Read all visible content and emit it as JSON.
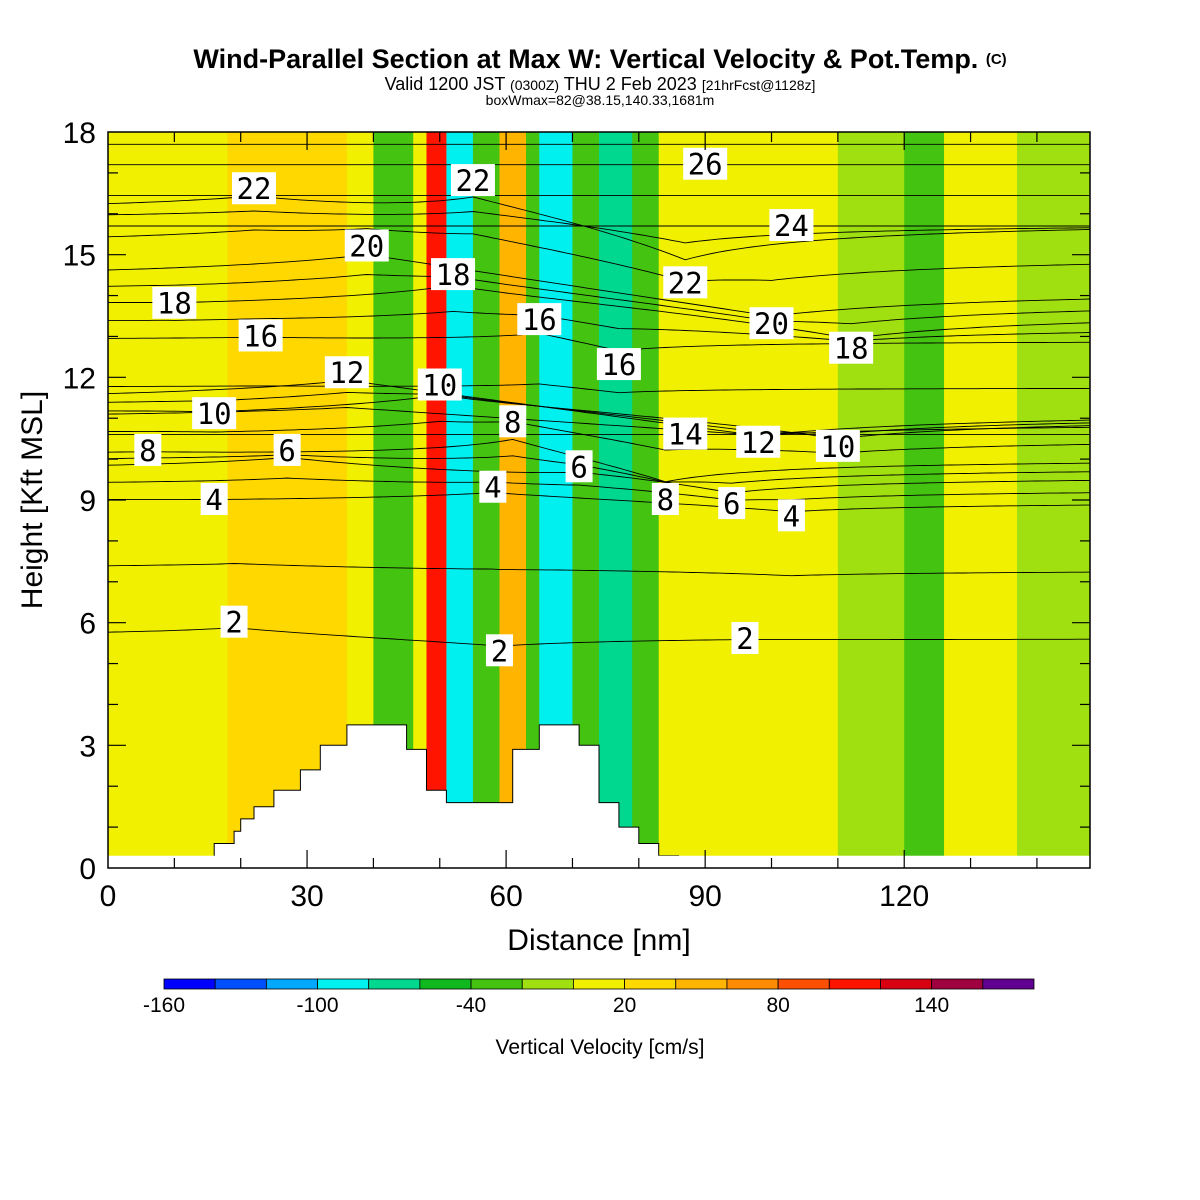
{
  "header": {
    "title": "Wind-Parallel Section at Max W: Vertical Velocity & Pot.Temp.",
    "copyright": "(C)",
    "valid_prefix": "Valid 1200 JST",
    "valid_utc": "(0300Z)",
    "valid_date": "THU 2 Feb 2023",
    "forecast": "[21hrFcst@1128z]",
    "box_info": "boxWmax=82@38.15,140.33,1681m"
  },
  "chart_data": {
    "type": "heatmap",
    "title": "Wind-Parallel Section at Max W: Vertical Velocity & Pot.Temp.",
    "xlabel": "Distance [nm]",
    "ylabel": "Height [Kft MSL]",
    "xlim": [
      0,
      148
    ],
    "ylim": [
      0,
      18
    ],
    "x_ticks": [
      0,
      30,
      60,
      90,
      120
    ],
    "y_ticks": [
      0,
      3,
      6,
      9,
      12,
      15,
      18
    ],
    "fill_variable": "Vertical Velocity [cm/s]",
    "colorbar": {
      "label": "Vertical Velocity [cm/s]",
      "tick_labels": [
        "-160",
        "-100",
        "-40",
        "20",
        "80",
        "140"
      ],
      "tick_values": [
        -160,
        -100,
        -40,
        20,
        80,
        140
      ],
      "range": [
        -160,
        180
      ],
      "step": 20,
      "colors": [
        "#0000ff",
        "#0050ff",
        "#00a8ff",
        "#00f0f0",
        "#00d890",
        "#10b820",
        "#44c410",
        "#a0e010",
        "#f0f000",
        "#ffd800",
        "#ffb400",
        "#ff8c00",
        "#ff5000",
        "#ff1400",
        "#d80010",
        "#a00040",
        "#600090"
      ]
    },
    "velocity_zones": [
      {
        "x": [
          0,
          4
        ],
        "value": 0
      },
      {
        "x": [
          4,
          18
        ],
        "value": 10
      },
      {
        "x": [
          18,
          36
        ],
        "value": 30
      },
      {
        "x": [
          36,
          40
        ],
        "value": 10
      },
      {
        "x": [
          40,
          46
        ],
        "value": -30
      },
      {
        "x": [
          46,
          48
        ],
        "value": 10
      },
      {
        "x": [
          48,
          51
        ],
        "value": 110
      },
      {
        "x": [
          51,
          55
        ],
        "value": -90
      },
      {
        "x": [
          55,
          59
        ],
        "value": -30
      },
      {
        "x": [
          59,
          63
        ],
        "value": 50
      },
      {
        "x": [
          63,
          65
        ],
        "value": -30
      },
      {
        "x": [
          65,
          70
        ],
        "value": -90
      },
      {
        "x": [
          70,
          74
        ],
        "value": -30
      },
      {
        "x": [
          74,
          79
        ],
        "value": -70
      },
      {
        "x": [
          79,
          83
        ],
        "value": -30
      },
      {
        "x": [
          83,
          89
        ],
        "value": 0
      },
      {
        "x": [
          89,
          110
        ],
        "value": 10
      },
      {
        "x": [
          110,
          120
        ],
        "value": -10
      },
      {
        "x": [
          120,
          126
        ],
        "value": -40
      },
      {
        "x": [
          126,
          137
        ],
        "value": 10
      },
      {
        "x": [
          137,
          148
        ],
        "value": -10
      }
    ],
    "contour_variable": "Potential Temperature",
    "contour_labels": [
      {
        "text": "22",
        "x": 22,
        "y": 16.6
      },
      {
        "text": "20",
        "x": 39,
        "y": 15.2
      },
      {
        "text": "22",
        "x": 55,
        "y": 16.8
      },
      {
        "text": "18",
        "x": 52,
        "y": 14.5
      },
      {
        "text": "26",
        "x": 90,
        "y": 17.2
      },
      {
        "text": "24",
        "x": 103,
        "y": 15.7
      },
      {
        "text": "22",
        "x": 87,
        "y": 14.3
      },
      {
        "text": "18",
        "x": 10,
        "y": 13.8
      },
      {
        "text": "16",
        "x": 23,
        "y": 13.0
      },
      {
        "text": "16",
        "x": 65,
        "y": 13.4
      },
      {
        "text": "16",
        "x": 77,
        "y": 12.3
      },
      {
        "text": "20",
        "x": 100,
        "y": 13.3
      },
      {
        "text": "18",
        "x": 112,
        "y": 12.7
      },
      {
        "text": "12",
        "x": 36,
        "y": 12.1
      },
      {
        "text": "10",
        "x": 50,
        "y": 11.8
      },
      {
        "text": "10",
        "x": 16,
        "y": 11.1
      },
      {
        "text": "8",
        "x": 61,
        "y": 10.9
      },
      {
        "text": "8",
        "x": 6,
        "y": 10.2
      },
      {
        "text": "6",
        "x": 27,
        "y": 10.2
      },
      {
        "text": "14",
        "x": 87,
        "y": 10.6
      },
      {
        "text": "12",
        "x": 98,
        "y": 10.4
      },
      {
        "text": "10",
        "x": 110,
        "y": 10.3
      },
      {
        "text": "6",
        "x": 71,
        "y": 9.8
      },
      {
        "text": "4",
        "x": 58,
        "y": 9.3
      },
      {
        "text": "4",
        "x": 16,
        "y": 9.0
      },
      {
        "text": "8",
        "x": 84,
        "y": 9.0
      },
      {
        "text": "6",
        "x": 94,
        "y": 8.9
      },
      {
        "text": "4",
        "x": 103,
        "y": 8.6
      },
      {
        "text": "2",
        "x": 19,
        "y": 6.0
      },
      {
        "text": "2",
        "x": 59,
        "y": 5.3
      },
      {
        "text": "2",
        "x": 96,
        "y": 5.6
      }
    ],
    "terrain": {
      "x": [
        16,
        16,
        19,
        19,
        20,
        20,
        22,
        22,
        25,
        25,
        29,
        29,
        32,
        32,
        36,
        36,
        45,
        45,
        48,
        48,
        51,
        51,
        61,
        61,
        65,
        65,
        71,
        71,
        74,
        74,
        77,
        77,
        80,
        80,
        83,
        83,
        86
      ],
      "height": [
        0.3,
        0.6,
        0.6,
        0.9,
        0.9,
        1.2,
        1.2,
        1.5,
        1.5,
        1.9,
        1.9,
        2.4,
        2.4,
        3.0,
        3.0,
        3.5,
        3.5,
        2.9,
        2.9,
        1.9,
        1.9,
        1.6,
        1.6,
        2.9,
        2.9,
        3.5,
        3.5,
        3.0,
        3.0,
        1.6,
        1.6,
        1.0,
        1.0,
        0.6,
        0.6,
        0.3,
        0.3
      ]
    }
  }
}
